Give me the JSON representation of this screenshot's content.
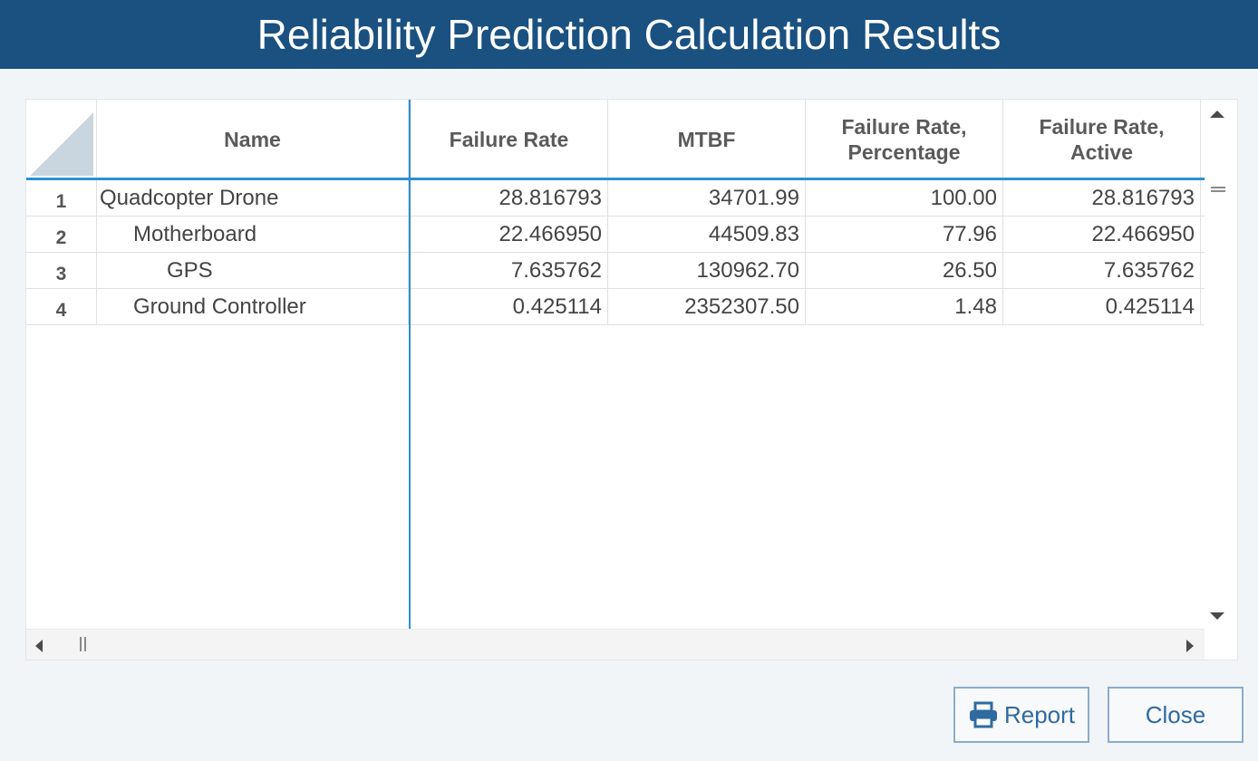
{
  "window": {
    "title": "Reliability Prediction Calculation Results"
  },
  "grid": {
    "columns": [
      {
        "label": "Name"
      },
      {
        "label": "Failure Rate"
      },
      {
        "label": "MTBF"
      },
      {
        "label": "Failure Rate,\nPercentage"
      },
      {
        "label": "Failure Rate,\nActive"
      }
    ],
    "rows": [
      {
        "num": "1",
        "name": "Quadcopter Drone",
        "indent": 0,
        "failure_rate": "28.816793",
        "mtbf": "34701.99",
        "percentage": "100.00",
        "active": "28.816793"
      },
      {
        "num": "2",
        "name": "Motherboard",
        "indent": 1,
        "failure_rate": "22.466950",
        "mtbf": "44509.83",
        "percentage": "77.96",
        "active": "22.466950"
      },
      {
        "num": "3",
        "name": "GPS",
        "indent": 2,
        "failure_rate": "7.635762",
        "mtbf": "130962.70",
        "percentage": "26.50",
        "active": "7.635762"
      },
      {
        "num": "4",
        "name": "Ground Controller",
        "indent": 1,
        "failure_rate": "0.425114",
        "mtbf": "2352307.50",
        "percentage": "1.48",
        "active": "0.425114"
      }
    ]
  },
  "buttons": {
    "report_label": "Report",
    "close_label": "Close"
  },
  "colors": {
    "title_bar": "#1a5180",
    "accent_line": "#2e8fcf",
    "button_text": "#2f6aa0"
  },
  "icons": {
    "report": "printer-icon"
  }
}
